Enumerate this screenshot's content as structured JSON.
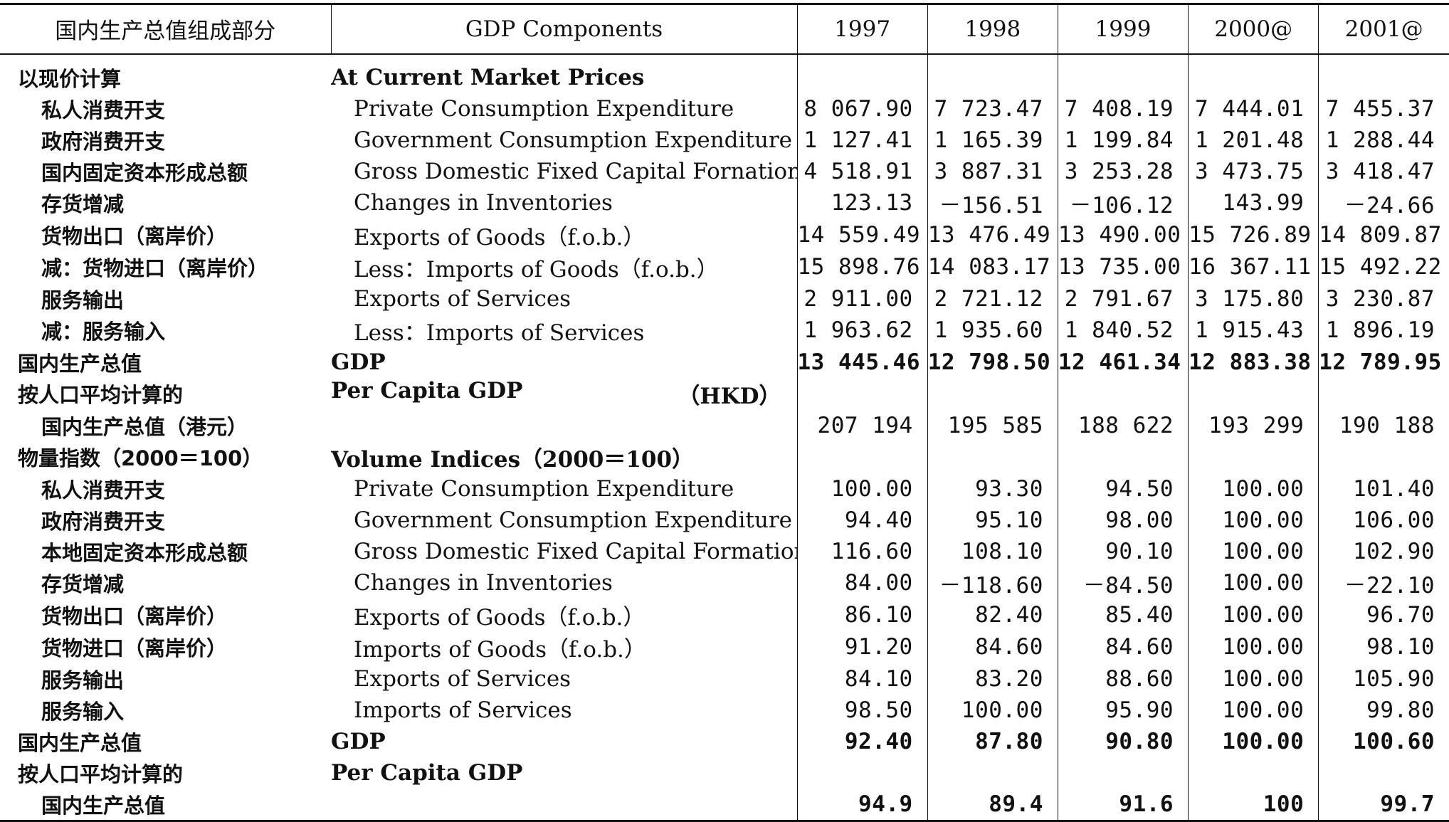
{
  "header": {
    "zh": "国内生产总值组成部分",
    "en": "GDP Components",
    "years": [
      "1997",
      "1998",
      "1999",
      "2000@",
      "2001@"
    ]
  },
  "rows": [
    {
      "type": "section",
      "zh": "以现价计算",
      "en": "At Current Market Prices",
      "values": [
        "",
        "",
        "",
        "",
        ""
      ]
    },
    {
      "type": "item",
      "zh": "私人消费开支",
      "en": "Private Consumption Expenditure",
      "values": [
        "8 067.90",
        "7 723.47",
        "7 408.19",
        "7 444.01",
        "7 455.37"
      ]
    },
    {
      "type": "item",
      "zh": "政府消费开支",
      "en": "Government Consumption Expenditure",
      "values": [
        "1 127.41",
        "1 165.39",
        "1 199.84",
        "1 201.48",
        "1 288.44"
      ]
    },
    {
      "type": "item",
      "zh": "国内固定资本形成总额",
      "en": "Gross Domestic Fixed Capital Fornation",
      "values": [
        "4 518.91",
        "3 887.31",
        "3 253.28",
        "3 473.75",
        "3 418.47"
      ]
    },
    {
      "type": "item",
      "zh": "存货增减",
      "en": "Changes in Inventories",
      "values": [
        "123.13",
        "－156.51",
        "－106.12",
        "143.99",
        "－24.66"
      ]
    },
    {
      "type": "item",
      "zh": "货物出口（离岸价）",
      "en": "Exports of Goods（f.o.b.）",
      "values": [
        "14 559.49",
        "13 476.49",
        "13 490.00",
        "15 726.89",
        "14 809.87"
      ]
    },
    {
      "type": "item",
      "zh": "减：货物进口（离岸价）",
      "en": "Less：Imports of Goods（f.o.b.）",
      "values": [
        "15 898.76",
        "14 083.17",
        "13 735.00",
        "16 367.11",
        "15 492.22"
      ]
    },
    {
      "type": "item",
      "zh": "服务输出",
      "en": "Exports of Services",
      "values": [
        "2 911.00",
        "2 721.12",
        "2 791.67",
        "3 175.80",
        "3 230.87"
      ]
    },
    {
      "type": "item",
      "zh": "减：服务输入",
      "en": "Less：Imports of Services",
      "values": [
        "1 963.62",
        "1 935.60",
        "1 840.52",
        "1 915.43",
        "1 896.19"
      ]
    },
    {
      "type": "total",
      "zh": "国内生产总值",
      "en": "GDP",
      "values": [
        "13 445.46",
        "12 798.50",
        "12 461.34",
        "12 883.38",
        "12 789.95"
      ]
    },
    {
      "type": "section",
      "zh": "按人口平均计算的",
      "en": "Per Capita GDP",
      "unit": "（HKD）",
      "values": [
        "",
        "",
        "",
        "",
        ""
      ]
    },
    {
      "type": "item-plain",
      "zh": "国内生产总值（港元）",
      "en": "",
      "values": [
        "207 194",
        "195 585",
        "188 622",
        "193 299",
        "190 188"
      ]
    },
    {
      "type": "section",
      "zh": "物量指数（2000＝100）",
      "en": "Volume Indices（2000＝100）",
      "values": [
        "",
        "",
        "",
        "",
        ""
      ]
    },
    {
      "type": "item",
      "zh": "私人消费开支",
      "en": "Private Consumption Expenditure",
      "values": [
        "100.00",
        "93.30",
        "94.50",
        "100.00",
        "101.40"
      ]
    },
    {
      "type": "item",
      "zh": "政府消费开支",
      "en": "Government Consumption Expenditure",
      "values": [
        "94.40",
        "95.10",
        "98.00",
        "100.00",
        "106.00"
      ]
    },
    {
      "type": "item",
      "zh": "本地固定资本形成总额",
      "en": "Gross Domestic Fixed Capital Formation",
      "values": [
        "116.60",
        "108.10",
        "90.10",
        "100.00",
        "102.90"
      ]
    },
    {
      "type": "item",
      "zh": "存货增减",
      "en": "Changes in Inventories",
      "values": [
        "84.00",
        "－118.60",
        "－84.50",
        "100.00",
        "－22.10"
      ]
    },
    {
      "type": "item",
      "zh": "货物出口（离岸价）",
      "en": "Exports of Goods（f.o.b.）",
      "values": [
        "86.10",
        "82.40",
        "85.40",
        "100.00",
        "96.70"
      ]
    },
    {
      "type": "item",
      "zh": "货物进口（离岸价）",
      "en": "Imports of Goods（f.o.b.）",
      "values": [
        "91.20",
        "84.60",
        "84.60",
        "100.00",
        "98.10"
      ]
    },
    {
      "type": "item",
      "zh": "服务输出",
      "en": "Exports of Services",
      "values": [
        "84.10",
        "83.20",
        "88.60",
        "100.00",
        "105.90"
      ]
    },
    {
      "type": "item",
      "zh": "服务输入",
      "en": "Imports of Services",
      "values": [
        "98.50",
        "100.00",
        "95.90",
        "100.00",
        "99.80"
      ]
    },
    {
      "type": "total",
      "zh": "国内生产总值",
      "en": "GDP",
      "values": [
        "92.40",
        "87.80",
        "90.80",
        "100.00",
        "100.60"
      ]
    },
    {
      "type": "section",
      "zh": "按人口平均计算的",
      "en": "Per Capita GDP",
      "values": [
        "",
        "",
        "",
        "",
        ""
      ]
    },
    {
      "type": "total-plain",
      "zh": "国内生产总值",
      "en": "",
      "values": [
        "94.9",
        "89.4",
        "91.6",
        "100",
        "99.7"
      ]
    }
  ]
}
